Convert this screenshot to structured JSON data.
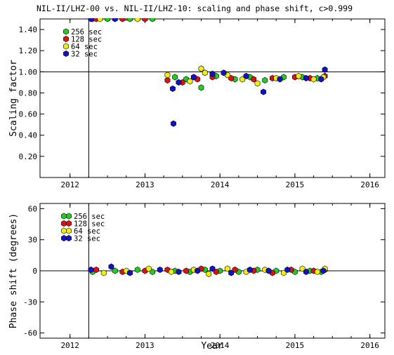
{
  "chart_data": [
    {
      "type": "scatter",
      "title": "NIL-II/LHZ-00 vs. NIL-II/LHZ-10: scaling and phase shift, c>0.999",
      "xlabel": "",
      "ylabel": "Scaling factor",
      "xlim": [
        2011.6,
        2016.2
      ],
      "ylim": [
        0.0,
        1.5
      ],
      "x_ticks": [
        "2012",
        "2013",
        "2014",
        "2015",
        "2016"
      ],
      "y_ticks": [
        "0.20",
        "0.40",
        "0.60",
        "0.80",
        "1.00",
        "1.20",
        "1.40"
      ],
      "reference_line": {
        "y": 1.0
      },
      "marker_line": {
        "x": 2012.25
      },
      "legend_position": "top-left",
      "series": [
        {
          "name": "256 sec",
          "color": "#22cc22",
          "points": [
            [
              2012.3,
              1.5
            ],
            [
              2012.5,
              1.5
            ],
            [
              2012.8,
              1.5
            ],
            [
              2013.1,
              1.5
            ],
            [
              2013.4,
              0.95
            ],
            [
              2013.55,
              0.93
            ],
            [
              2013.75,
              0.85
            ],
            [
              2013.95,
              0.96
            ],
            [
              2014.2,
              0.93
            ],
            [
              2014.4,
              0.95
            ],
            [
              2014.6,
              0.92
            ],
            [
              2014.85,
              0.95
            ],
            [
              2015.1,
              0.95
            ],
            [
              2015.3,
              0.94
            ]
          ]
        },
        {
          "name": "128 sec",
          "color": "#dd1111",
          "points": [
            [
              2012.35,
              1.5
            ],
            [
              2012.7,
              1.5
            ],
            [
              2013.0,
              1.5
            ],
            [
              2013.3,
              0.92
            ],
            [
              2013.5,
              0.9
            ],
            [
              2013.7,
              0.93
            ],
            [
              2013.9,
              0.95
            ],
            [
              2014.15,
              0.94
            ],
            [
              2014.45,
              0.93
            ],
            [
              2014.7,
              0.94
            ],
            [
              2015.0,
              0.95
            ],
            [
              2015.2,
              0.94
            ],
            [
              2015.4,
              0.96
            ]
          ]
        },
        {
          "name": "64 sec",
          "color": "#eeee11",
          "points": [
            [
              2012.4,
              1.5
            ],
            [
              2012.9,
              1.5
            ],
            [
              2013.3,
              0.97
            ],
            [
              2013.6,
              0.91
            ],
            [
              2013.75,
              1.03
            ],
            [
              2013.8,
              0.99
            ],
            [
              2014.1,
              0.97
            ],
            [
              2014.3,
              0.93
            ],
            [
              2014.5,
              0.89
            ],
            [
              2014.75,
              0.94
            ],
            [
              2015.05,
              0.96
            ],
            [
              2015.25,
              0.93
            ],
            [
              2015.38,
              0.95
            ]
          ]
        },
        {
          "name": "32 sec",
          "color": "#1111cc",
          "points": [
            [
              2012.28,
              1.5
            ],
            [
              2012.6,
              1.5
            ],
            [
              2013.37,
              0.84
            ],
            [
              2013.38,
              0.51
            ],
            [
              2013.45,
              0.9
            ],
            [
              2013.65,
              0.95
            ],
            [
              2013.9,
              0.98
            ],
            [
              2014.05,
              0.99
            ],
            [
              2014.35,
              0.96
            ],
            [
              2014.58,
              0.81
            ],
            [
              2014.8,
              0.93
            ],
            [
              2015.15,
              0.94
            ],
            [
              2015.35,
              0.93
            ],
            [
              2015.4,
              1.02
            ]
          ]
        }
      ]
    },
    {
      "type": "scatter",
      "title": "",
      "xlabel": "Year",
      "ylabel": "Phase shift (degrees)",
      "xlim": [
        2011.6,
        2016.2
      ],
      "ylim": [
        -65,
        65
      ],
      "x_ticks": [
        "2012",
        "2013",
        "2014",
        "2015",
        "2016"
      ],
      "y_ticks": [
        "60",
        "30",
        "0",
        "-30",
        "-60"
      ],
      "reference_line": {
        "y": 0
      },
      "marker_line": {
        "x": 2012.25
      },
      "legend_position": "top-left",
      "series": [
        {
          "name": "256 sec",
          "color": "#22cc22",
          "points": [
            [
              2012.3,
              -1
            ],
            [
              2012.6,
              0
            ],
            [
              2012.9,
              1
            ],
            [
              2013.1,
              -1
            ],
            [
              2013.4,
              0
            ],
            [
              2013.6,
              -1
            ],
            [
              2013.8,
              1
            ],
            [
              2014.0,
              0
            ],
            [
              2014.25,
              -1
            ],
            [
              2014.5,
              1
            ],
            [
              2014.75,
              0
            ],
            [
              2015.0,
              -1
            ],
            [
              2015.2,
              0
            ],
            [
              2015.35,
              -1
            ]
          ]
        },
        {
          "name": "128 sec",
          "color": "#dd1111",
          "points": [
            [
              2012.35,
              1
            ],
            [
              2012.7,
              -1
            ],
            [
              2013.0,
              0
            ],
            [
              2013.3,
              1
            ],
            [
              2013.55,
              0
            ],
            [
              2013.75,
              2
            ],
            [
              2013.95,
              -1
            ],
            [
              2014.2,
              1
            ],
            [
              2014.45,
              0
            ],
            [
              2014.7,
              -2
            ],
            [
              2014.95,
              1
            ],
            [
              2015.25,
              0
            ],
            [
              2015.4,
              1
            ]
          ]
        },
        {
          "name": "64 sec",
          "color": "#eeee11",
          "points": [
            [
              2012.45,
              -2
            ],
            [
              2012.75,
              0
            ],
            [
              2013.05,
              2
            ],
            [
              2013.35,
              -1
            ],
            [
              2013.65,
              1
            ],
            [
              2013.85,
              -3
            ],
            [
              2014.1,
              2
            ],
            [
              2014.35,
              -1
            ],
            [
              2014.6,
              1
            ],
            [
              2014.85,
              -2
            ],
            [
              2015.1,
              2
            ],
            [
              2015.3,
              -1
            ],
            [
              2015.4,
              2
            ]
          ]
        },
        {
          "name": "32 sec",
          "color": "#1111cc",
          "points": [
            [
              2012.28,
              1
            ],
            [
              2012.55,
              4
            ],
            [
              2012.8,
              -2
            ],
            [
              2013.2,
              1
            ],
            [
              2013.45,
              -1
            ],
            [
              2013.7,
              0
            ],
            [
              2013.9,
              2
            ],
            [
              2014.15,
              -2
            ],
            [
              2014.4,
              1
            ],
            [
              2014.65,
              0
            ],
            [
              2014.9,
              1
            ],
            [
              2015.15,
              -1
            ],
            [
              2015.38,
              0
            ]
          ]
        }
      ]
    }
  ]
}
